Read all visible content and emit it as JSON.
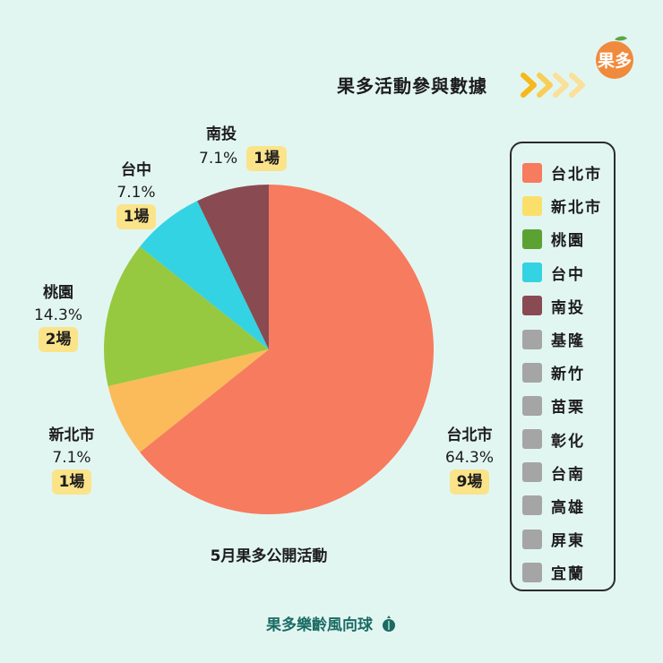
{
  "header": {
    "title": "果多活動參與數據",
    "logo_text": "果多",
    "arrow_icon": "chevron-arrows-icon",
    "arrow_colors": [
      "#f6b81a",
      "#f8cd58",
      "#fae09a"
    ]
  },
  "chart_data": {
    "type": "pie",
    "title": "5月果多公開活動",
    "slices": [
      {
        "label": "台北市",
        "percent": "64.3%",
        "count": "9場",
        "value": 9,
        "color": "#f77b5e"
      },
      {
        "label": "新北市",
        "percent": "7.1%",
        "count": "1場",
        "value": 1,
        "color": "#fbbb5a"
      },
      {
        "label": "桃園",
        "percent": "14.3%",
        "count": "2場",
        "value": 2,
        "color": "#96c93f"
      },
      {
        "label": "台中",
        "percent": "7.1%",
        "count": "1場",
        "value": 1,
        "color": "#33d3e3"
      },
      {
        "label": "南投",
        "percent": "7.1%",
        "count": "1場",
        "value": 1,
        "color": "#8a4a52"
      }
    ]
  },
  "legend": {
    "items": [
      {
        "label": "台北市",
        "color": "#f77b5e"
      },
      {
        "label": "新北市",
        "color": "#fbdf6b"
      },
      {
        "label": "桃園",
        "color": "#5ba232"
      },
      {
        "label": "台中",
        "color": "#33d3e3"
      },
      {
        "label": "南投",
        "color": "#8a4a52"
      },
      {
        "label": "基隆",
        "color": "#a5a5a5"
      },
      {
        "label": "新竹",
        "color": "#a5a5a5"
      },
      {
        "label": "苗栗",
        "color": "#a5a5a5"
      },
      {
        "label": "彰化",
        "color": "#a5a5a5"
      },
      {
        "label": "台南",
        "color": "#a5a5a5"
      },
      {
        "label": "高雄",
        "color": "#a5a5a5"
      },
      {
        "label": "屏東",
        "color": "#a5a5a5"
      },
      {
        "label": "宜蘭",
        "color": "#a5a5a5"
      }
    ]
  },
  "footer": {
    "text": "果多樂齡風向球",
    "icon": "leaf-ball-icon"
  }
}
